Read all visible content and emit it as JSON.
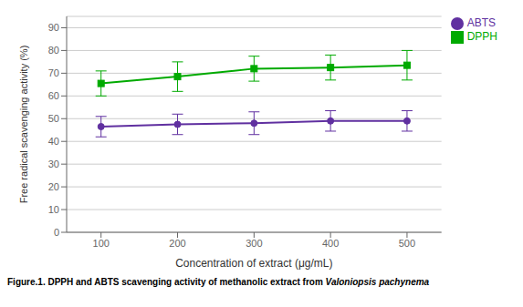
{
  "chart_data": {
    "type": "line",
    "x": [
      100,
      200,
      300,
      400,
      500
    ],
    "series": [
      {
        "name": "DPPH",
        "color": "#00aa00",
        "marker": "square",
        "values": [
          65.5,
          68.5,
          72.0,
          72.5,
          73.5
        ],
        "error": [
          5.5,
          6.5,
          5.5,
          5.5,
          6.5
        ]
      },
      {
        "name": "ABTS",
        "color": "#6030a0",
        "marker": "circle",
        "values": [
          46.5,
          47.5,
          48.0,
          49.0,
          49.0
        ],
        "error": [
          4.5,
          4.5,
          5.0,
          4.5,
          4.5
        ]
      }
    ],
    "x_label": "Concentration of extract (μg/mL)",
    "y_label": "Free  radical scavenging activity (%)",
    "xlim": [
      55,
      545
    ],
    "ylim": [
      0,
      95
    ],
    "xticks": [
      100,
      200,
      300,
      400,
      500
    ],
    "yticks": [
      0,
      10,
      20,
      30,
      40,
      50,
      60,
      70,
      80,
      90
    ],
    "grid": true,
    "legend": "right",
    "annotations": [
      "Figure.1. DPPH and ABTS scavenging activity of methanolic extract from ",
      "Valoniopsis pachynema"
    ]
  }
}
